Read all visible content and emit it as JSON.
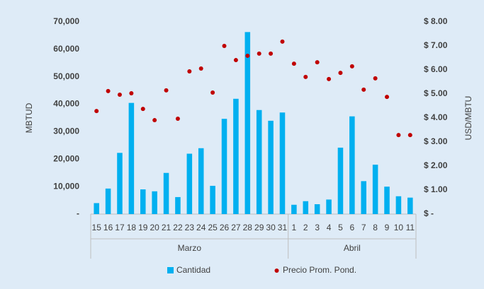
{
  "chart_data": {
    "type": "bar_scatter",
    "groups": [
      {
        "name": "Marzo",
        "categories": [
          "15",
          "16",
          "17",
          "18",
          "19",
          "20",
          "21",
          "22",
          "23",
          "24",
          "25",
          "26",
          "27",
          "28",
          "29",
          "30",
          "31"
        ]
      },
      {
        "name": "Abril",
        "categories": [
          "1",
          "2",
          "3",
          "4",
          "5",
          "6",
          "7",
          "8",
          "9",
          "10",
          "11"
        ]
      }
    ],
    "y_label": "MBTUD",
    "y2_label": "USD/MBTU",
    "series": [
      {
        "name": "Cantidad",
        "type": "bar",
        "color": "#00b0f0",
        "values": [
          4000,
          9300,
          22300,
          40500,
          9000,
          8300,
          15000,
          6200,
          22000,
          24000,
          10300,
          34700,
          42000,
          66300,
          37900,
          34000,
          37000,
          3400,
          4700,
          3600,
          5300,
          24200,
          35600,
          12000,
          18000,
          10000,
          6500,
          6000
        ]
      },
      {
        "name": "Precio Prom. Pond.",
        "type": "scatter",
        "axis": "y2",
        "color": "#c00000",
        "values": [
          4.29,
          5.12,
          4.97,
          5.03,
          4.38,
          3.91,
          5.15,
          3.97,
          5.94,
          6.06,
          5.06,
          7.0,
          6.41,
          6.59,
          6.68,
          6.68,
          7.18,
          6.26,
          5.71,
          6.32,
          5.62,
          5.88,
          6.15,
          5.18,
          5.65,
          4.88,
          3.29,
          3.29
        ]
      }
    ],
    "ylim": [
      0,
      70000
    ],
    "yticks": [
      {
        "value": 0,
        "label": "-"
      },
      {
        "value": 10000,
        "label": "10,000"
      },
      {
        "value": 20000,
        "label": "20,000"
      },
      {
        "value": 30000,
        "label": "30,000"
      },
      {
        "value": 40000,
        "label": "40,000"
      },
      {
        "value": 50000,
        "label": "50,000"
      },
      {
        "value": 60000,
        "label": "60,000"
      },
      {
        "value": 70000,
        "label": "70,000"
      }
    ],
    "y2lim": [
      0,
      8
    ],
    "y2ticks": [
      {
        "value": 0,
        "label": "$ -"
      },
      {
        "value": 1,
        "label": "$ 1.00"
      },
      {
        "value": 2,
        "label": "$ 2.00"
      },
      {
        "value": 3,
        "label": "$ 3.00"
      },
      {
        "value": 4,
        "label": "$ 4.00"
      },
      {
        "value": 5,
        "label": "$ 5.00"
      },
      {
        "value": 6,
        "label": "$ 6.00"
      },
      {
        "value": 7,
        "label": "$ 7.00"
      },
      {
        "value": 8,
        "label": "$ 8.00"
      }
    ],
    "grid": false,
    "legend": "bottom"
  }
}
